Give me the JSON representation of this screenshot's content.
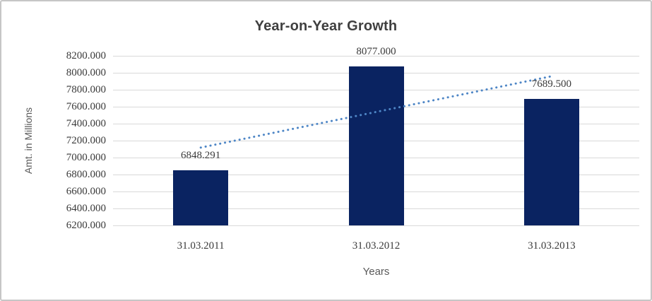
{
  "window": {
    "background_color": "#ffffff",
    "frame_border_color": "#c6c6c6"
  },
  "chart_data": {
    "type": "bar",
    "title": "Year-on-Year Growth",
    "xlabel": "Years",
    "ylabel": "Amt. in Millions",
    "categories": [
      "31.03.2011",
      "31.03.2012",
      "31.03.2013"
    ],
    "values": [
      6848.291,
      8077.0,
      7689.5
    ],
    "value_labels": [
      "6848.291",
      "8077.000",
      "7689.500"
    ],
    "ylim": [
      6200,
      8200
    ],
    "ytick_step": 200,
    "ytick_labels": [
      "8200.000",
      "8000.000",
      "7800.000",
      "7600.000",
      "7400.000",
      "7200.000",
      "7000.000",
      "6800.000",
      "6600.000",
      "6400.000",
      "6200.000"
    ],
    "grid": true,
    "legend": "none",
    "bar_color": "#0a2361",
    "gridline_color": "#d9d9d9",
    "title_color": "#3f3f3f",
    "tick_label_color": "#3a3a3a",
    "axis_title_color": "#595959",
    "trendline": {
      "type": "linear",
      "style": "dotted",
      "color": "#4e86c6",
      "endpoint_values": [
        7117.7,
        7958.9
      ]
    }
  }
}
